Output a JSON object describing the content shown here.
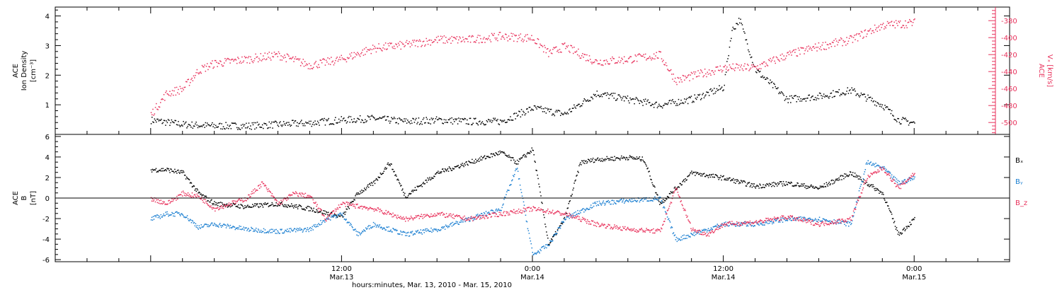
{
  "colors": {
    "black": "#000000",
    "pink": "#e8325c",
    "blue": "#1b7fd1"
  },
  "chart_data": [
    {
      "type": "scatter",
      "panel": "ion-density-vx",
      "ylabel": [
        "ACE",
        "Ion Density",
        "[cm⁻³]"
      ],
      "ylim": [
        0,
        4.3
      ],
      "yticks": [
        "1",
        "2",
        "3",
        "4"
      ],
      "ytick_values": [
        1,
        2,
        3,
        4
      ],
      "y2label": [
        "ACE",
        "Vₓ [km/s]"
      ],
      "y2lim": [
        -514,
        -364
      ],
      "y2ticks": [
        "-500",
        "-480",
        "-460",
        "-440",
        "-420",
        "-400",
        "-380"
      ],
      "y2tick_values": [
        -500,
        -480,
        -460,
        -440,
        -420,
        -400,
        -380
      ],
      "series": [
        {
          "color": "black",
          "x_hours": [
            0,
            2,
            4,
            6,
            8,
            10,
            12,
            14,
            16,
            18,
            20,
            22,
            24,
            26,
            28,
            30,
            32,
            34,
            36,
            36.5,
            37,
            38,
            40,
            42,
            44,
            46,
            47,
            48
          ],
          "values": [
            0.5,
            0.35,
            0.3,
            0.3,
            0.35,
            0.4,
            0.5,
            0.55,
            0.45,
            0.5,
            0.45,
            0.45,
            0.9,
            0.7,
            1.4,
            1.2,
            1.0,
            1.2,
            1.6,
            3.5,
            3.9,
            2.2,
            1.2,
            1.3,
            1.5,
            1.0,
            0.5,
            0.4
          ]
        },
        {
          "color": "pink",
          "x_hours": [
            0,
            1,
            2,
            3,
            4,
            6,
            8,
            10,
            12,
            14,
            16,
            18,
            20,
            22,
            24,
            25,
            26,
            28,
            30,
            32,
            33,
            34,
            36,
            37,
            38,
            40,
            42,
            44,
            46,
            48
          ],
          "values": [
            -490,
            -465,
            -460,
            -438,
            -430,
            -425,
            -420,
            -432,
            -425,
            -412,
            -408,
            -402,
            -402,
            -398,
            -400,
            -418,
            -410,
            -428,
            -425,
            -420,
            -450,
            -445,
            -435,
            -435,
            -435,
            -420,
            -410,
            -402,
            -385,
            -382
          ]
        }
      ]
    },
    {
      "type": "scatter",
      "panel": "magnetic-field",
      "ylabel": [
        "ACE",
        "B",
        "[nT]"
      ],
      "ylim": [
        -6.2,
        6.2
      ],
      "yticks": [
        "-6",
        "-4",
        "-2",
        "0",
        "2",
        "4",
        "6"
      ],
      "ytick_values": [
        -6,
        -4,
        -2,
        0,
        2,
        4,
        6
      ],
      "zero_line": true,
      "series": [
        {
          "name": "Bₓ",
          "color": "black",
          "x_hours": [
            0,
            1,
            2,
            3,
            4,
            6,
            8,
            10,
            12,
            13,
            14,
            15,
            16,
            18,
            20,
            22,
            23,
            24,
            25,
            26,
            27,
            28,
            30,
            31,
            32,
            33,
            34,
            36,
            38,
            40,
            42,
            44,
            46,
            47,
            48
          ],
          "values": [
            2.8,
            2.8,
            2.5,
            0.5,
            -0.5,
            -0.8,
            -0.5,
            -1.0,
            -1.8,
            0.5,
            1.5,
            3.5,
            0.2,
            2.5,
            3.5,
            4.5,
            3.5,
            4.8,
            -4.5,
            -2.0,
            3.5,
            3.8,
            4.0,
            3.8,
            -0.5,
            1.0,
            2.5,
            2.0,
            1.2,
            1.5,
            1.0,
            2.5,
            0.5,
            -3.5,
            -2.0
          ]
        },
        {
          "name": "Bᵧ",
          "color": "blue",
          "x_hours": [
            0,
            1,
            2,
            3,
            4,
            6,
            8,
            10,
            11,
            12,
            13,
            14,
            16,
            18,
            20,
            22,
            23,
            24,
            25,
            26,
            28,
            30,
            32,
            33,
            34,
            36,
            38,
            40,
            42,
            44,
            45,
            46,
            47,
            48
          ],
          "values": [
            -2.0,
            -1.5,
            -1.5,
            -2.8,
            -2.5,
            -3.0,
            -3.2,
            -3.0,
            -2.0,
            -1.5,
            -3.5,
            -2.5,
            -3.5,
            -3.0,
            -2.0,
            -1.0,
            3.0,
            -5.5,
            -4.5,
            -2.0,
            -0.5,
            -0.2,
            0.0,
            -4.0,
            -3.5,
            -2.5,
            -2.5,
            -2.0,
            -2.0,
            -2.5,
            3.5,
            3.0,
            1.5,
            2.0
          ]
        },
        {
          "name": "B_z",
          "color": "pink",
          "x_hours": [
            0,
            1,
            2,
            3,
            4,
            6,
            7,
            8,
            9,
            10,
            11,
            12,
            14,
            15,
            16,
            18,
            20,
            22,
            24,
            26,
            28,
            30,
            32,
            33,
            34,
            35,
            36,
            38,
            40,
            42,
            44,
            45,
            46,
            47,
            48
          ],
          "values": [
            0.0,
            -0.5,
            0.5,
            0.2,
            -1.0,
            0.0,
            1.5,
            -0.5,
            0.5,
            0.2,
            -2.0,
            -0.5,
            -1.0,
            -1.5,
            -2.0,
            -1.5,
            -2.0,
            -1.5,
            -1.0,
            -1.5,
            -2.5,
            -3.0,
            -3.2,
            1.0,
            -3.0,
            -3.5,
            -2.5,
            -2.3,
            -1.8,
            -2.5,
            -2.0,
            2.0,
            3.0,
            1.0,
            2.5
          ]
        }
      ]
    }
  ],
  "legend": [
    {
      "label": "Bₓ",
      "color": "black"
    },
    {
      "label": "Bᵧ",
      "color": "blue"
    },
    {
      "label": "B_z",
      "color": "pink"
    }
  ],
  "time_axis": {
    "range_hours": [
      -6,
      54
    ],
    "ticks": [
      {
        "hours": 12,
        "time": "12:00",
        "date": "Mar.13"
      },
      {
        "hours": 24,
        "time": "0:00",
        "date": "Mar.14"
      },
      {
        "hours": 36,
        "time": "12:00",
        "date": "Mar.14"
      },
      {
        "hours": 48,
        "time": "0:00",
        "date": "Mar.15"
      }
    ],
    "label": "hours:minutes, Mar. 13, 2010 - Mar. 15, 2010"
  }
}
